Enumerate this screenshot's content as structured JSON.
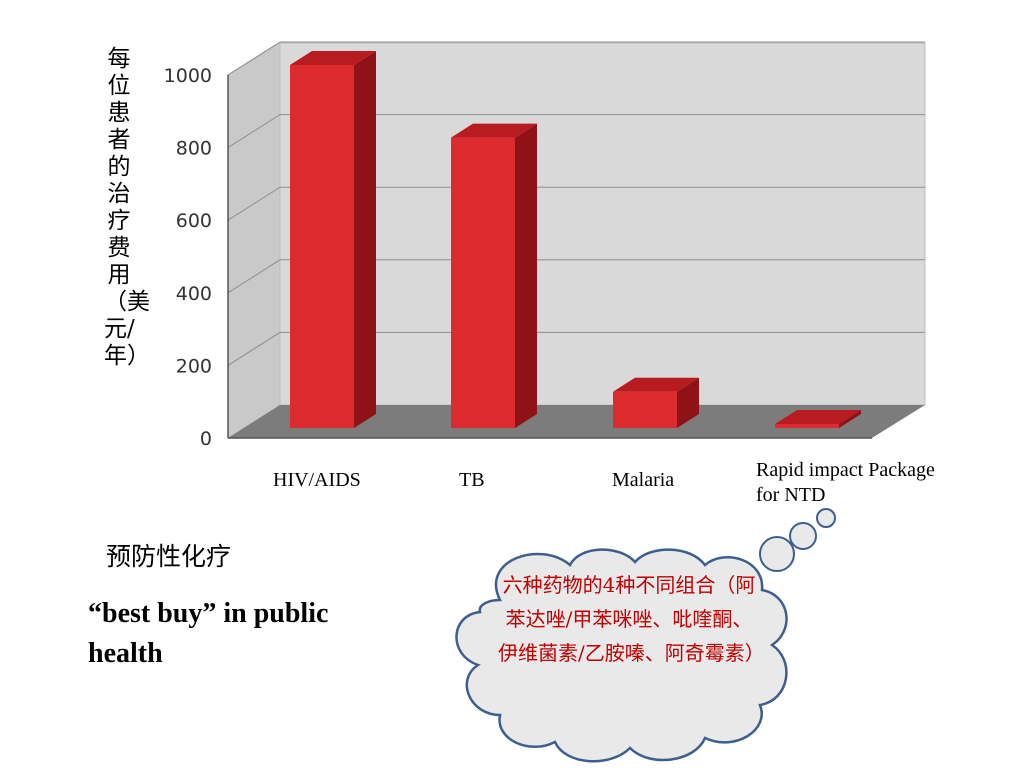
{
  "chart_data": {
    "type": "bar",
    "style": "3d",
    "ylabel": "每位患者的治疗费用（美元/年）",
    "xlabel": "",
    "title": "",
    "categories": [
      "HIV/AIDS",
      "TB",
      "Malaria",
      "Rapid impact Package for NTD"
    ],
    "values": [
      1000,
      800,
      100,
      10
    ],
    "ylim": [
      0,
      1000
    ],
    "yticks": [
      0,
      200,
      400,
      600,
      800,
      1000
    ],
    "grid": true,
    "legend": "none",
    "colors": {
      "bar_front": "#dd2a2f",
      "bar_side": "#8e1216",
      "bar_top": "#b81b20",
      "wall": "#d8d8d8",
      "floor": "#7a7a7a"
    }
  },
  "annotations": {
    "subtitle": "预防性化疗",
    "best_buy": "“best buy” in public health",
    "cloud_text": "六种药物的4种不同组合（阿苯达唑/甲苯咪唑、吡喹酮、伊维菌素/乙胺嗪、阿奇霉素）",
    "cloud_text_color": "#c00000"
  }
}
